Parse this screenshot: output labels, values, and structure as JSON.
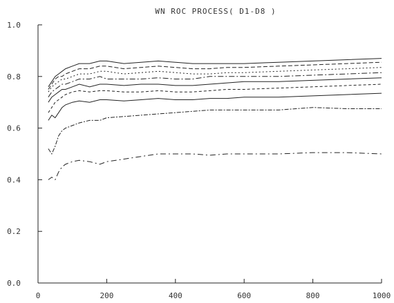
{
  "chart_data": {
    "type": "line",
    "title": "WN ROC PROCESS( D1-D8 )",
    "xlabel": "",
    "ylabel": "",
    "xlim": [
      0,
      1000
    ],
    "ylim": [
      0.0,
      1.0
    ],
    "x_ticks": [
      {
        "value": 0,
        "label": "0"
      },
      {
        "value": 200,
        "label": "200"
      },
      {
        "value": 400,
        "label": "400"
      },
      {
        "value": 600,
        "label": "600"
      },
      {
        "value": 800,
        "label": "800"
      },
      {
        "value": 1000,
        "label": "1000"
      }
    ],
    "y_ticks": [
      {
        "value": 0.0,
        "label": "0.0"
      },
      {
        "value": 0.2,
        "label": "0.2"
      },
      {
        "value": 0.4,
        "label": "0.4"
      },
      {
        "value": 0.6,
        "label": "0.6"
      },
      {
        "value": 0.8,
        "label": "0.8"
      },
      {
        "value": 1.0,
        "label": "1.0"
      }
    ],
    "grid": false,
    "legend": "none",
    "x": [
      30,
      40,
      50,
      60,
      70,
      80,
      100,
      120,
      150,
      180,
      200,
      250,
      300,
      350,
      400,
      450,
      500,
      550,
      600,
      700,
      800,
      900,
      1000
    ],
    "series": [
      {
        "values": [
          0.76,
          0.78,
          0.8,
          0.81,
          0.82,
          0.83,
          0.84,
          0.85,
          0.85,
          0.86,
          0.86,
          0.85,
          0.855,
          0.86,
          0.855,
          0.85,
          0.85,
          0.85,
          0.85,
          0.855,
          0.86,
          0.865,
          0.87
        ]
      },
      {
        "values": [
          0.75,
          0.77,
          0.79,
          0.8,
          0.8,
          0.81,
          0.82,
          0.83,
          0.83,
          0.84,
          0.84,
          0.83,
          0.835,
          0.84,
          0.835,
          0.83,
          0.83,
          0.835,
          0.835,
          0.84,
          0.845,
          0.85,
          0.855
        ]
      },
      {
        "values": [
          0.74,
          0.76,
          0.77,
          0.78,
          0.79,
          0.79,
          0.8,
          0.81,
          0.81,
          0.82,
          0.82,
          0.81,
          0.815,
          0.82,
          0.815,
          0.81,
          0.81,
          0.815,
          0.815,
          0.82,
          0.825,
          0.83,
          0.835
        ]
      },
      {
        "values": [
          0.72,
          0.74,
          0.75,
          0.76,
          0.77,
          0.77,
          0.78,
          0.79,
          0.79,
          0.8,
          0.79,
          0.79,
          0.79,
          0.795,
          0.79,
          0.79,
          0.8,
          0.8,
          0.8,
          0.8,
          0.805,
          0.81,
          0.815
        ]
      },
      {
        "values": [
          0.7,
          0.72,
          0.73,
          0.74,
          0.75,
          0.75,
          0.76,
          0.77,
          0.76,
          0.77,
          0.77,
          0.765,
          0.77,
          0.77,
          0.765,
          0.765,
          0.77,
          0.775,
          0.78,
          0.78,
          0.785,
          0.79,
          0.795
        ]
      },
      {
        "values": [
          0.66,
          0.68,
          0.7,
          0.71,
          0.72,
          0.73,
          0.74,
          0.745,
          0.74,
          0.745,
          0.745,
          0.74,
          0.74,
          0.745,
          0.74,
          0.74,
          0.745,
          0.75,
          0.75,
          0.755,
          0.76,
          0.765,
          0.77
        ]
      },
      {
        "values": [
          0.63,
          0.65,
          0.64,
          0.66,
          0.68,
          0.69,
          0.7,
          0.705,
          0.7,
          0.71,
          0.71,
          0.705,
          0.71,
          0.715,
          0.71,
          0.71,
          0.715,
          0.715,
          0.72,
          0.72,
          0.725,
          0.73,
          0.735
        ]
      },
      {
        "values": [
          0.52,
          0.5,
          0.53,
          0.57,
          0.59,
          0.6,
          0.61,
          0.62,
          0.63,
          0.63,
          0.64,
          0.645,
          0.65,
          0.655,
          0.66,
          0.665,
          0.67,
          0.67,
          0.67,
          0.67,
          0.68,
          0.675,
          0.675
        ]
      },
      {
        "values": [
          0.4,
          0.41,
          0.4,
          0.43,
          0.45,
          0.46,
          0.47,
          0.475,
          0.47,
          0.46,
          0.47,
          0.48,
          0.49,
          0.5,
          0.5,
          0.5,
          0.495,
          0.5,
          0.5,
          0.5,
          0.505,
          0.505,
          0.5
        ]
      }
    ]
  }
}
